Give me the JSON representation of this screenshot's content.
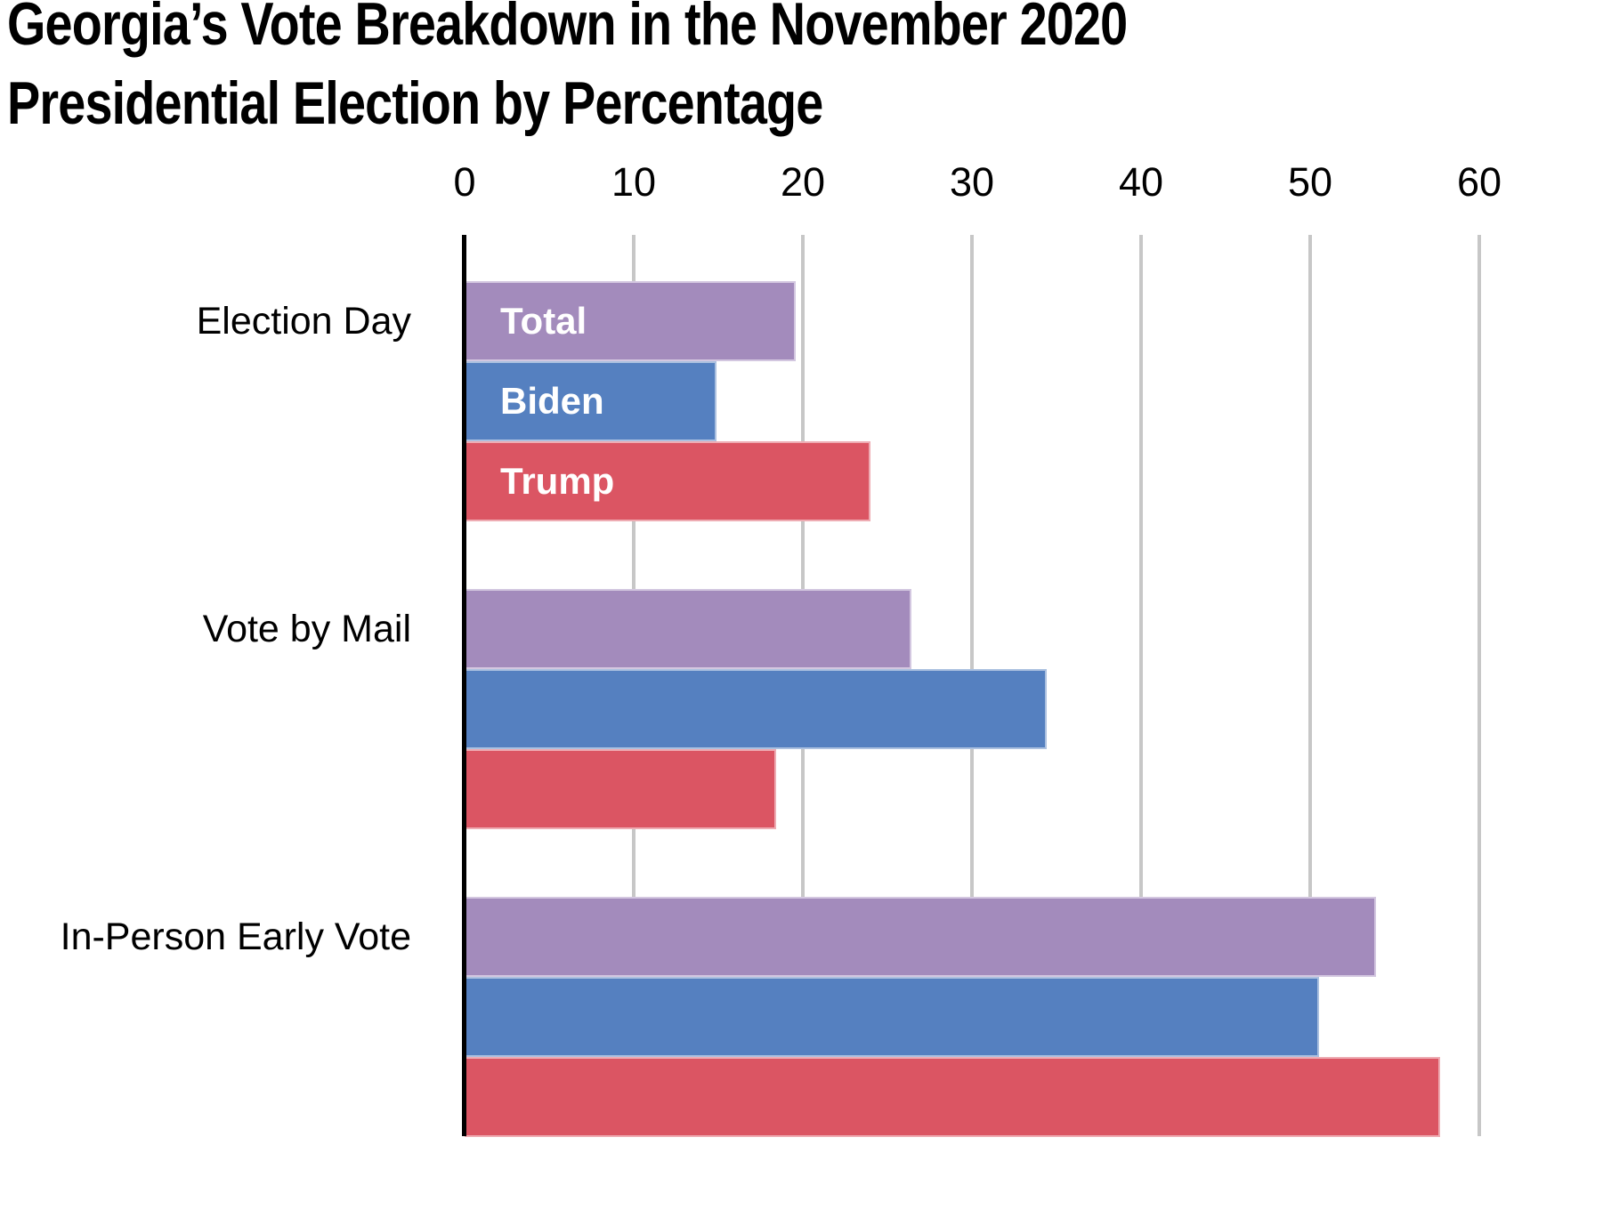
{
  "title": {
    "line1": "Georgia’s Vote Breakdown in the November 2020",
    "line2": "Presidential Election by Percentage"
  },
  "chart_data": {
    "type": "bar",
    "orientation": "horizontal",
    "title": "Georgia’s Vote Breakdown in the November 2020 Presidential Election by Percentage",
    "categories": [
      "Election Day",
      "Vote by Mail",
      "In-Person Early Vote"
    ],
    "series": [
      {
        "name": "Total",
        "color": "#a38bbc",
        "border_color": "#d3c7e0",
        "values": [
          19.6,
          26.4,
          53.9
        ]
      },
      {
        "name": "Biden",
        "color": "#5580c0",
        "border_color": "#acc1e0",
        "values": [
          14.9,
          34.4,
          50.5
        ]
      },
      {
        "name": "Trump",
        "color": "#db5563",
        "border_color": "#eeacb3",
        "values": [
          24.0,
          18.4,
          57.7
        ]
      }
    ],
    "x_ticks": [
      0,
      10,
      20,
      30,
      40,
      50,
      60
    ],
    "xlim": [
      0,
      65
    ],
    "xlabel": "",
    "ylabel": "",
    "grid": true,
    "legend_position": "labels inside bars of first group only",
    "background": "#ffffff",
    "axis_color": "#000000",
    "gridline_color": "#c7c7c7",
    "bar_label_color": "#ffffff",
    "category_label_color": "#000000"
  }
}
